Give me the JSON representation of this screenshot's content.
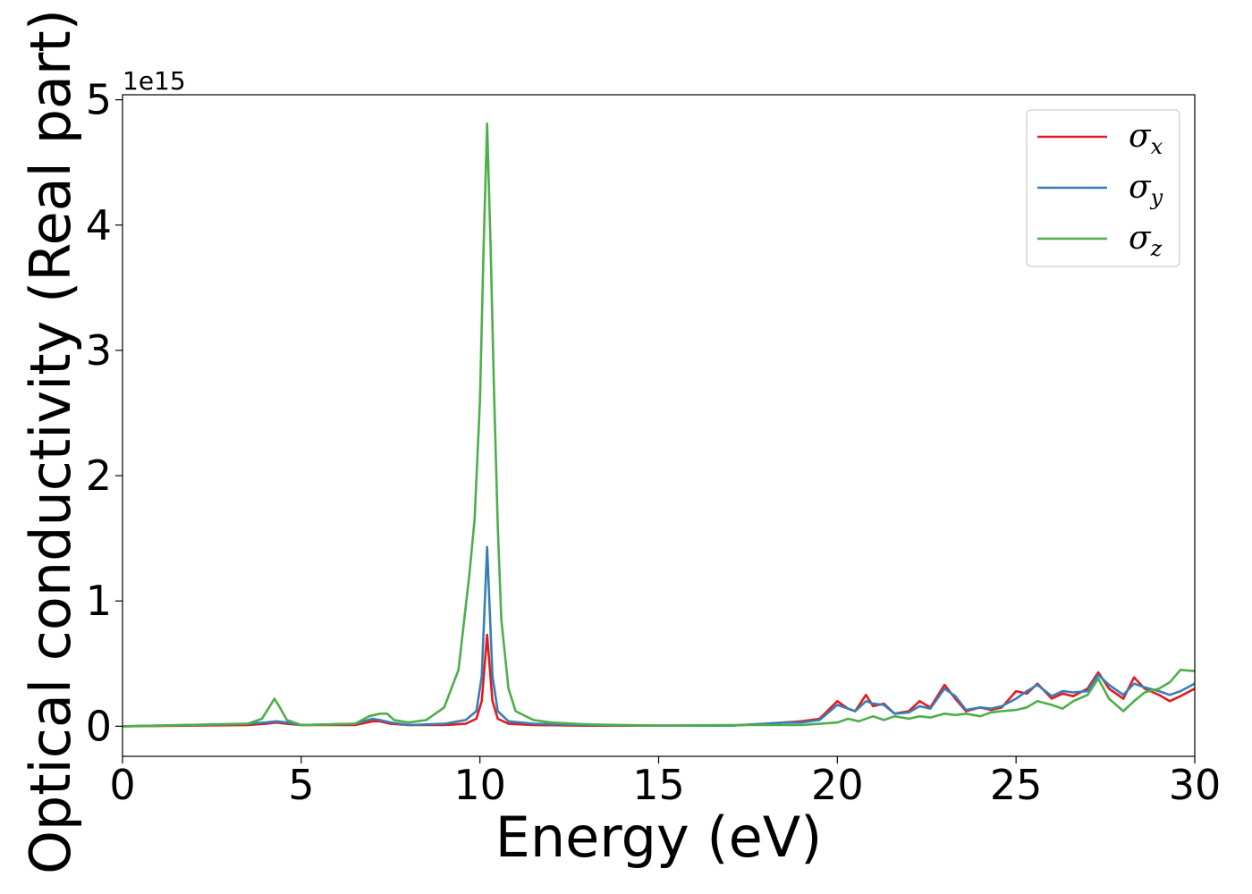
{
  "chart_data": {
    "type": "line",
    "xlabel": "Energy (eV)",
    "ylabel": "Optical conductivity (Real part)",
    "y_offset_label": "1e15",
    "xlim": [
      0,
      30
    ],
    "ylim": [
      -0.24,
      5.04
    ],
    "xticks": [
      0,
      5,
      10,
      15,
      20,
      25,
      30
    ],
    "yticks": [
      0,
      1,
      2,
      3,
      4,
      5
    ],
    "grid": false,
    "legend_position": "top-right",
    "series": [
      {
        "name": "σ",
        "subscript": "x",
        "color": "#e41a1c",
        "x": [
          0,
          3.5,
          4.0,
          4.3,
          4.6,
          5.0,
          6.5,
          7.0,
          7.2,
          7.5,
          8.0,
          9.0,
          9.6,
          9.9,
          10.05,
          10.2,
          10.35,
          10.5,
          10.8,
          11.5,
          13,
          15,
          17,
          18.0,
          18.5,
          19.0,
          19.5,
          20.0,
          20.3,
          20.5,
          20.8,
          21.0,
          21.3,
          21.6,
          22.0,
          22.3,
          22.6,
          23.0,
          23.3,
          23.6,
          24.0,
          24.3,
          24.6,
          25.0,
          25.3,
          25.6,
          26.0,
          26.3,
          26.6,
          27.0,
          27.3,
          27.6,
          28.0,
          28.3,
          28.6,
          29.0,
          29.3,
          29.6,
          30.0
        ],
        "y": [
          0.0,
          0.01,
          0.02,
          0.03,
          0.02,
          0.01,
          0.01,
          0.04,
          0.04,
          0.02,
          0.01,
          0.01,
          0.02,
          0.06,
          0.2,
          0.73,
          0.2,
          0.06,
          0.02,
          0.01,
          0.005,
          0.005,
          0.005,
          0.02,
          0.03,
          0.04,
          0.06,
          0.2,
          0.14,
          0.12,
          0.25,
          0.16,
          0.18,
          0.1,
          0.12,
          0.2,
          0.15,
          0.33,
          0.22,
          0.12,
          0.15,
          0.13,
          0.15,
          0.28,
          0.26,
          0.34,
          0.22,
          0.26,
          0.24,
          0.3,
          0.43,
          0.3,
          0.22,
          0.39,
          0.3,
          0.25,
          0.2,
          0.24,
          0.3
        ]
      },
      {
        "name": "σ",
        "subscript": "y",
        "color": "#377eb8",
        "x": [
          0,
          3.5,
          4.0,
          4.3,
          4.6,
          5.0,
          6.5,
          7.0,
          7.2,
          7.5,
          8.0,
          9.0,
          9.6,
          9.9,
          10.05,
          10.2,
          10.35,
          10.5,
          10.8,
          11.5,
          13,
          15,
          17,
          18.0,
          18.5,
          19.0,
          19.5,
          20.0,
          20.3,
          20.5,
          20.8,
          21.0,
          21.3,
          21.6,
          22.0,
          22.3,
          22.6,
          23.0,
          23.3,
          23.6,
          24.0,
          24.3,
          24.6,
          25.0,
          25.3,
          25.6,
          26.0,
          26.3,
          26.6,
          27.0,
          27.3,
          27.6,
          28.0,
          28.3,
          28.6,
          29.0,
          29.3,
          29.6,
          30.0
        ],
        "y": [
          0.0,
          0.02,
          0.03,
          0.04,
          0.03,
          0.01,
          0.02,
          0.06,
          0.05,
          0.03,
          0.01,
          0.02,
          0.05,
          0.12,
          0.4,
          1.43,
          0.4,
          0.12,
          0.04,
          0.02,
          0.01,
          0.005,
          0.005,
          0.02,
          0.03,
          0.03,
          0.05,
          0.17,
          0.14,
          0.12,
          0.2,
          0.18,
          0.17,
          0.1,
          0.11,
          0.16,
          0.14,
          0.3,
          0.24,
          0.13,
          0.15,
          0.14,
          0.16,
          0.22,
          0.28,
          0.33,
          0.24,
          0.28,
          0.27,
          0.28,
          0.41,
          0.33,
          0.25,
          0.34,
          0.31,
          0.28,
          0.25,
          0.28,
          0.34
        ]
      },
      {
        "name": "σ",
        "subscript": "z",
        "color": "#4daf4a",
        "x": [
          0,
          3.5,
          3.9,
          4.1,
          4.25,
          4.4,
          4.6,
          5.0,
          6.5,
          6.9,
          7.2,
          7.4,
          7.6,
          8.0,
          8.5,
          9.0,
          9.4,
          9.7,
          9.85,
          10.0,
          10.1,
          10.2,
          10.3,
          10.4,
          10.5,
          10.6,
          10.8,
          11.0,
          11.5,
          12.0,
          13,
          15,
          17,
          18.0,
          19.0,
          19.5,
          20.0,
          20.3,
          20.6,
          21.0,
          21.3,
          21.6,
          22.0,
          22.3,
          22.6,
          23.0,
          23.3,
          23.6,
          24.0,
          24.3,
          24.6,
          25.0,
          25.3,
          25.6,
          26.0,
          26.3,
          26.6,
          27.0,
          27.3,
          27.6,
          28.0,
          28.3,
          28.6,
          29.0,
          29.3,
          29.6,
          30.0
        ],
        "y": [
          0.0,
          0.02,
          0.06,
          0.15,
          0.22,
          0.15,
          0.05,
          0.01,
          0.02,
          0.08,
          0.1,
          0.1,
          0.05,
          0.03,
          0.05,
          0.15,
          0.45,
          1.2,
          1.65,
          2.6,
          3.8,
          4.81,
          3.8,
          2.6,
          1.6,
          0.85,
          0.3,
          0.12,
          0.05,
          0.03,
          0.015,
          0.005,
          0.01,
          0.01,
          0.01,
          0.02,
          0.03,
          0.06,
          0.04,
          0.08,
          0.05,
          0.08,
          0.06,
          0.08,
          0.07,
          0.1,
          0.09,
          0.1,
          0.08,
          0.11,
          0.12,
          0.13,
          0.15,
          0.2,
          0.17,
          0.14,
          0.2,
          0.25,
          0.38,
          0.22,
          0.12,
          0.2,
          0.27,
          0.3,
          0.35,
          0.45,
          0.44
        ]
      }
    ]
  }
}
